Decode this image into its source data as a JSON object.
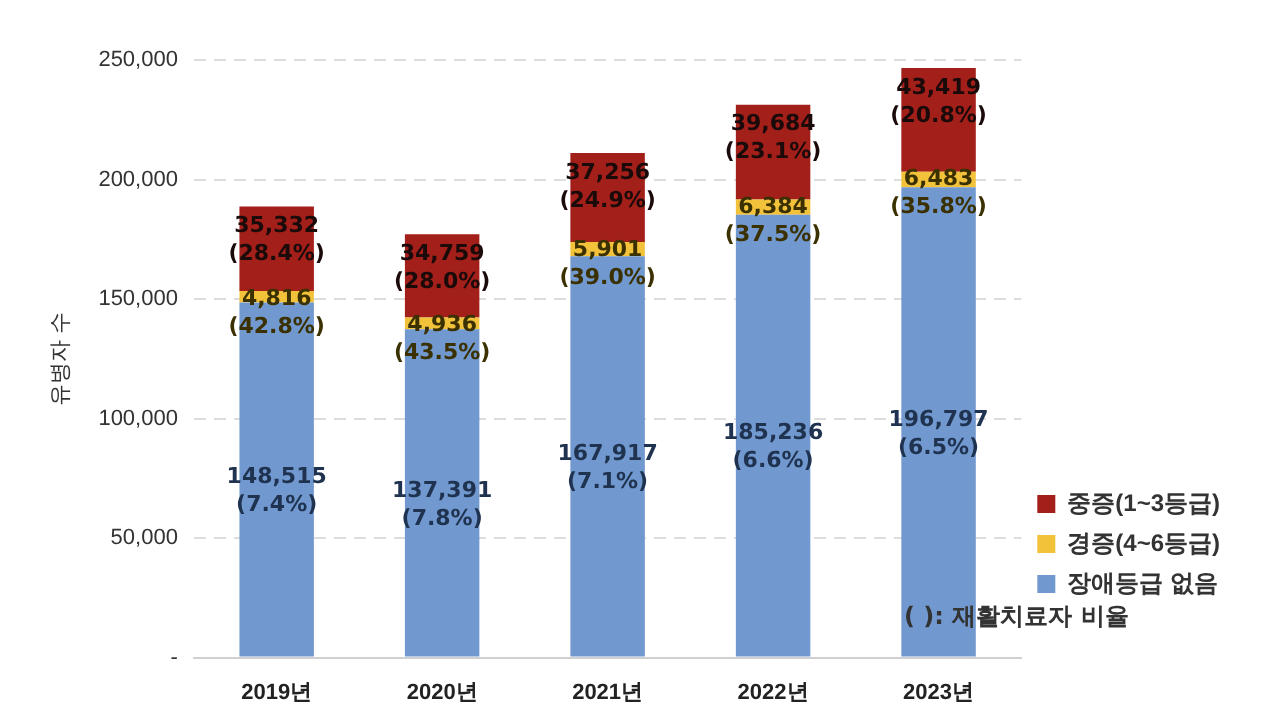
{
  "chart_data": {
    "type": "bar",
    "stacked": true,
    "ylabel": "유병자 수",
    "categories": [
      "2019년",
      "2020년",
      "2021년",
      "2022년",
      "2023년"
    ],
    "series": [
      {
        "name": "장애등급 없음",
        "color": "#7199cf",
        "values": [
          148515,
          137391,
          167917,
          185236,
          196797
        ],
        "value_labels": [
          "148,515\n(7.4%)",
          "137,391\n(7.8%)",
          "167,917\n(7.1%)",
          "185,236\n(6.6%)",
          "196,797\n(6.5%)"
        ]
      },
      {
        "name": "경증(4~6등급)",
        "color": "#f2c23a",
        "values": [
          4816,
          4936,
          5901,
          6384,
          6483
        ],
        "value_labels": [
          "4,816\n(42.8%)",
          "4,936\n(43.5%)",
          "5,901\n(39.0%)",
          "6,384\n(37.5%)",
          "6,483\n(35.8%)"
        ]
      },
      {
        "name": "중증(1~3등급)",
        "color": "#a31f1a",
        "values": [
          35332,
          34759,
          37256,
          39684,
          43419
        ],
        "value_labels": [
          "35,332\n(28.4%)",
          "34,759\n(28.0%)",
          "37,256\n(24.9%)",
          "39,684\n(23.1%)",
          "43,419\n(20.8%)"
        ]
      }
    ],
    "ylim": [
      0,
      250000
    ],
    "yticks": [
      {
        "value": 0,
        "label": "-"
      },
      {
        "value": 50000,
        "label": "50,000"
      },
      {
        "value": 100000,
        "label": "100,000"
      },
      {
        "value": 150000,
        "label": "150,000"
      },
      {
        "value": 200000,
        "label": "200,000"
      },
      {
        "value": 250000,
        "label": "250,000"
      }
    ],
    "grid": "y",
    "legend": "right",
    "annotations": [
      "( ): 재활치료자 비율"
    ]
  }
}
